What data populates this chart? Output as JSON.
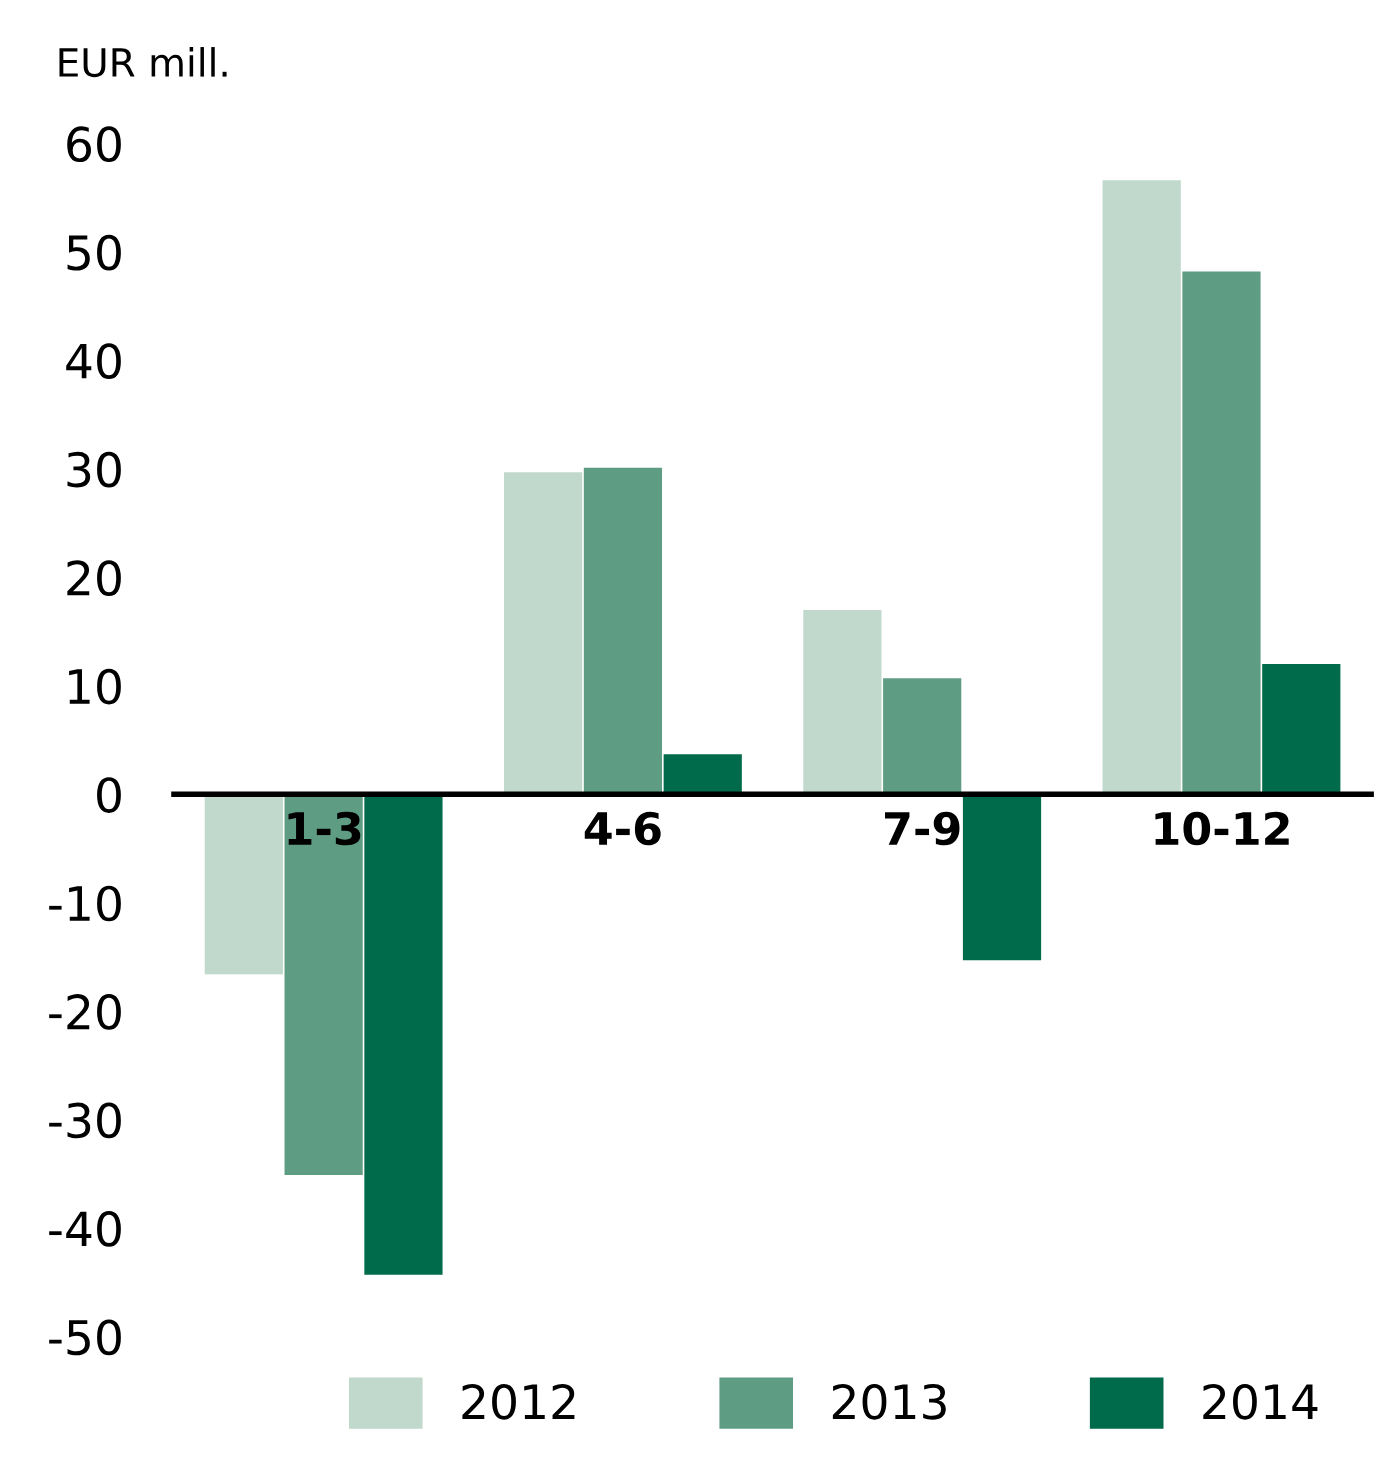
{
  "chart_data": {
    "type": "bar",
    "ylabel": "EUR mill.",
    "categories": [
      "1-3",
      "4-6",
      "7-9",
      "10-12"
    ],
    "series": [
      {
        "name": "2012",
        "color": "#c0d9cc",
        "values": [
          -16.6,
          29.7,
          17.0,
          56.6
        ]
      },
      {
        "name": "2013",
        "color": "#5f9c84",
        "values": [
          -35.1,
          30.1,
          10.7,
          48.2
        ]
      },
      {
        "name": "2014",
        "color": "#006b4a",
        "values": [
          -44.3,
          3.7,
          -15.3,
          12.0
        ]
      }
    ],
    "ylim": [
      -50,
      60
    ],
    "yticks": [
      -50,
      -40,
      -30,
      -20,
      -10,
      0,
      10,
      20,
      30,
      40,
      50,
      60
    ],
    "grid": false,
    "legend": "bottom"
  }
}
